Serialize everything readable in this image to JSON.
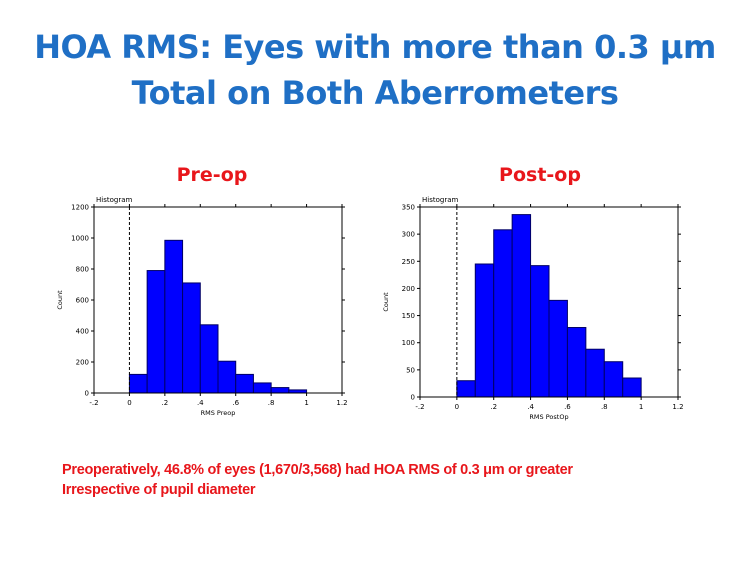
{
  "slide": {
    "title_line1": "HOA RMS: Eyes with more than 0.3 μm",
    "title_line2": "Total on Both Aberrometers",
    "note_line1": "Preoperatively, 46.8% of eyes (1,670/3,568) had HOA RMS of 0.3 μm or greater",
    "note_line2": "Irrespective of pupil diameter"
  },
  "colors": {
    "title": "#1F6FC5",
    "label": "#E8161B",
    "bar_fill": "#0000FF",
    "bar_stroke": "#000066"
  },
  "chart_data": [
    {
      "type": "bar",
      "panel_label": "Pre-op",
      "caption": "Histogram",
      "xlabel": "RMS Preop",
      "ylabel": "Count",
      "xlim": [
        -0.2,
        1.2
      ],
      "ylim": [
        0,
        1200
      ],
      "x_ticks": [
        -0.2,
        0,
        0.2,
        0.4,
        0.6,
        0.8,
        1,
        1.2
      ],
      "x_tick_labels": [
        "-.2",
        "0",
        ".2",
        ".4",
        ".6",
        ".8",
        "1",
        "1.2"
      ],
      "y_ticks": [
        0,
        200,
        400,
        600,
        800,
        1000,
        1200
      ],
      "y_tick_labels": [
        "0",
        "200",
        "400",
        "600",
        "800",
        "1000",
        "1200"
      ],
      "reference_line_x": 0,
      "bin_width": 0.1,
      "bin_starts": [
        0,
        0.1,
        0.2,
        0.3,
        0.4,
        0.5,
        0.6,
        0.7,
        0.8,
        0.9
      ],
      "values": [
        120,
        790,
        985,
        710,
        440,
        205,
        120,
        65,
        35,
        20
      ]
    },
    {
      "type": "bar",
      "panel_label": "Post-op",
      "caption": "Histogram",
      "xlabel": "RMS PostOp",
      "ylabel": "Count",
      "xlim": [
        -0.2,
        1.2
      ],
      "ylim": [
        0,
        350
      ],
      "x_ticks": [
        -0.2,
        0,
        0.2,
        0.4,
        0.6,
        0.8,
        1,
        1.2
      ],
      "x_tick_labels": [
        "-.2",
        "0",
        ".2",
        ".4",
        ".6",
        ".8",
        "1",
        "1.2"
      ],
      "y_ticks": [
        0,
        50,
        100,
        150,
        200,
        250,
        300,
        350
      ],
      "y_tick_labels": [
        "0",
        "50",
        "100",
        "150",
        "200",
        "250",
        "300",
        "350"
      ],
      "reference_line_x": 0,
      "bin_width": 0.1,
      "bin_starts": [
        0,
        0.1,
        0.2,
        0.3,
        0.4,
        0.5,
        0.6,
        0.7,
        0.8,
        0.9
      ],
      "values": [
        30,
        245,
        308,
        336,
        242,
        178,
        128,
        88,
        65,
        35
      ]
    }
  ]
}
